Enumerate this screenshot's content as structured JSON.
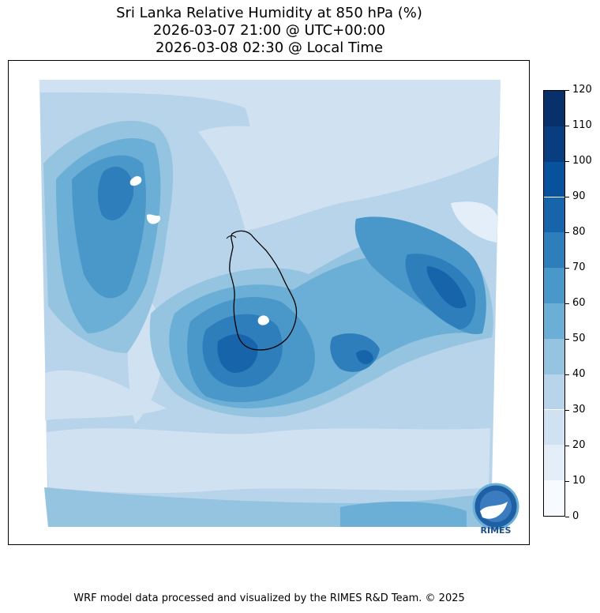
{
  "title": {
    "line1": "Sri Lanka Relative Humidity at 850 hPa (%)",
    "line2": "2026-03-07 21:00 @ UTC+00:00",
    "line3": "2026-03-08 02:30 @ Local Time"
  },
  "colorbar": {
    "ticks": [
      "0",
      "10",
      "20",
      "30",
      "40",
      "50",
      "60",
      "70",
      "80",
      "90",
      "100",
      "110",
      "120"
    ],
    "colors": [
      "#f7fbff",
      "#e3eef9",
      "#d0e1f2",
      "#b7d4ea",
      "#94c4df",
      "#6baed6",
      "#4a98c9",
      "#2e7ebc",
      "#1764ab",
      "#08519c",
      "#083d7f",
      "#08306b"
    ]
  },
  "logo": {
    "text": "RIMES"
  },
  "footer": "WRF model data processed and visualized by the RIMES R&D Team. © 2025"
}
